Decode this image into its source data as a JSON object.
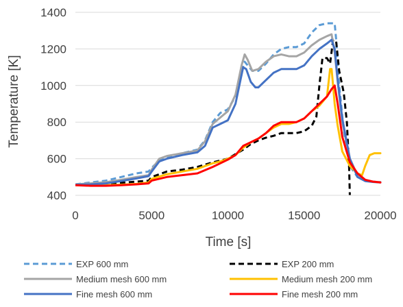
{
  "chart_data": {
    "type": "line",
    "title": "",
    "xlabel": "Time [s]",
    "ylabel": "Temperature [K]",
    "xlim": [
      0,
      20000
    ],
    "ylim": [
      400,
      1400
    ],
    "xticks": [
      0,
      5000,
      10000,
      15000,
      20000
    ],
    "yticks": [
      400,
      600,
      800,
      1000,
      1200,
      1400
    ],
    "xtick_labels": [
      "0",
      "5000",
      "10000",
      "15000",
      "20000"
    ],
    "ytick_labels": [
      "400",
      "600",
      "800",
      "1000",
      "1200",
      "1400"
    ],
    "grid": "horizontal",
    "legend_position": "bottom",
    "series": [
      {
        "name": "EXP 600 mm",
        "color": "#5b9bd5",
        "style": "dashed",
        "x": [
          0,
          1000,
          2000,
          3000,
          4000,
          4800,
          5000,
          5500,
          6000,
          7000,
          8000,
          8500,
          9000,
          9500,
          10000,
          10500,
          10900,
          11100,
          11300,
          11600,
          12000,
          12500,
          13000,
          13500,
          14000,
          14500,
          15000,
          15500,
          16000,
          16500,
          16800,
          17000,
          17100,
          17300,
          17600,
          18000,
          18500,
          19000,
          19500,
          20000
        ],
        "y": [
          460,
          470,
          480,
          500,
          520,
          530,
          550,
          590,
          610,
          630,
          650,
          700,
          800,
          850,
          870,
          940,
          1080,
          1130,
          1110,
          1080,
          1080,
          1120,
          1170,
          1200,
          1210,
          1210,
          1230,
          1290,
          1330,
          1340,
          1340,
          1340,
          1250,
          1000,
          750,
          560,
          500,
          480,
          475,
          472
        ]
      },
      {
        "name": "EXP 200 mm",
        "color": "#000000",
        "style": "dashed",
        "x": [
          0,
          1000,
          2000,
          3000,
          4000,
          4800,
          5000,
          6000,
          7000,
          8000,
          9000,
          9500,
          10000,
          10500,
          11000,
          11500,
          12000,
          12500,
          13000,
          13500,
          14000,
          14500,
          15000,
          15500,
          15800,
          16000,
          16200,
          16500,
          16700,
          16900,
          17100,
          17300,
          17600,
          17800,
          17950,
          18000
        ],
        "y": [
          460,
          460,
          462,
          468,
          475,
          480,
          500,
          530,
          540,
          555,
          580,
          590,
          600,
          625,
          650,
          680,
          700,
          715,
          725,
          740,
          740,
          740,
          750,
          780,
          830,
          1000,
          1150,
          1150,
          1120,
          1250,
          1240,
          1080,
          960,
          800,
          550,
          390
        ]
      },
      {
        "name": "Medium mesh 600 mm",
        "color": "#a5a5a5",
        "style": "solid",
        "x": [
          0,
          1000,
          2000,
          3000,
          4000,
          4800,
          5000,
          5500,
          6000,
          7000,
          8000,
          8500,
          9000,
          9500,
          10000,
          10500,
          10900,
          11100,
          11300,
          11600,
          12000,
          12500,
          13000,
          13500,
          14000,
          14500,
          15000,
          15500,
          16000,
          16500,
          16800,
          17000,
          17200,
          17500,
          18000,
          18500,
          19000,
          19500,
          20000
        ],
        "y": [
          460,
          465,
          472,
          485,
          500,
          510,
          540,
          600,
          615,
          630,
          645,
          695,
          790,
          825,
          860,
          950,
          1110,
          1170,
          1140,
          1080,
          1090,
          1130,
          1160,
          1170,
          1160,
          1160,
          1180,
          1220,
          1250,
          1270,
          1280,
          1180,
          1020,
          800,
          600,
          510,
          480,
          474,
          472
        ]
      },
      {
        "name": "Medium mesh 200 mm",
        "color": "#ffc000",
        "style": "solid",
        "x": [
          0,
          1000,
          2000,
          3000,
          4000,
          4800,
          5000,
          6000,
          7000,
          8000,
          9000,
          9500,
          10000,
          10500,
          11000,
          11500,
          12000,
          12500,
          13000,
          13500,
          14000,
          14500,
          15000,
          15500,
          16000,
          16500,
          16700,
          16800,
          16900,
          17000,
          17200,
          17500,
          18000,
          18500,
          18800,
          19000,
          19300,
          19600,
          20000
        ],
        "y": [
          455,
          455,
          455,
          458,
          462,
          470,
          490,
          515,
          530,
          545,
          575,
          585,
          600,
          620,
          660,
          690,
          710,
          740,
          770,
          790,
          790,
          800,
          820,
          860,
          890,
          940,
          1090,
          1090,
          1000,
          900,
          780,
          640,
          560,
          520,
          510,
          560,
          620,
          630,
          630
        ]
      },
      {
        "name": "Fine mesh 600 mm",
        "color": "#4472c4",
        "style": "solid",
        "x": [
          0,
          1000,
          2000,
          3000,
          4000,
          4800,
          5000,
          5500,
          6000,
          7000,
          8000,
          8500,
          9000,
          9500,
          10000,
          10500,
          10800,
          11000,
          11200,
          11500,
          11800,
          12000,
          12500,
          13000,
          13500,
          14000,
          14500,
          15000,
          15500,
          16000,
          16500,
          16800,
          17000,
          17200,
          17500,
          18000,
          18500,
          19000,
          19500,
          20000
        ],
        "y": [
          458,
          460,
          465,
          478,
          492,
          505,
          530,
          585,
          600,
          620,
          635,
          670,
          770,
          790,
          810,
          900,
          1020,
          1100,
          1090,
          1020,
          990,
          990,
          1030,
          1070,
          1090,
          1090,
          1090,
          1110,
          1160,
          1200,
          1230,
          1250,
          1200,
          1030,
          820,
          600,
          500,
          478,
          473,
          470
        ]
      },
      {
        "name": "Fine mesh 200 mm",
        "color": "#ff0000",
        "style": "solid",
        "x": [
          0,
          1000,
          2000,
          3000,
          4000,
          4800,
          5000,
          6000,
          7000,
          8000,
          9000,
          9500,
          10000,
          10500,
          11000,
          11500,
          12000,
          12500,
          13000,
          13500,
          14000,
          14500,
          15000,
          15500,
          16000,
          16500,
          16800,
          17000,
          17200,
          17500,
          18000,
          18500,
          19000,
          19500,
          20000
        ],
        "y": [
          455,
          452,
          452,
          455,
          460,
          465,
          480,
          500,
          510,
          520,
          555,
          575,
          595,
          620,
          670,
          690,
          710,
          740,
          780,
          800,
          800,
          800,
          820,
          860,
          900,
          940,
          980,
          1000,
          900,
          720,
          580,
          520,
          485,
          475,
          470
        ]
      }
    ]
  }
}
